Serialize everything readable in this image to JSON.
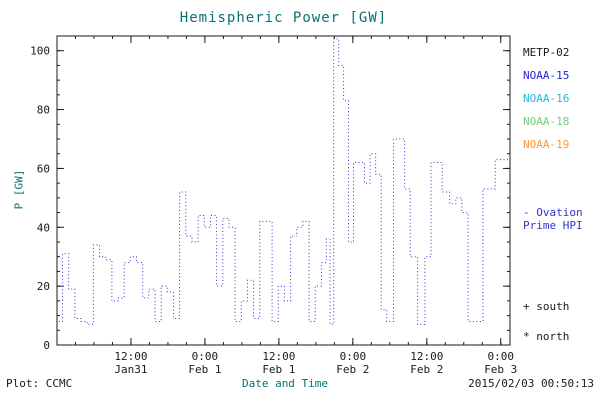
{
  "header": {
    "title": "Hemispheric Power [GW]"
  },
  "footer": {
    "left": "Plot: CCMC",
    "right": "2015/02/03 00:50:13"
  },
  "legend": {
    "satellites": [
      {
        "label": "METP-02",
        "color": "#1a1a1a"
      },
      {
        "label": "NOAA-15",
        "color": "#2222dd"
      },
      {
        "label": "NOAA-16",
        "color": "#22bbdd"
      },
      {
        "label": "NOAA-18",
        "color": "#77cc77"
      },
      {
        "label": "NOAA-19",
        "color": "#ff9933"
      }
    ],
    "model": {
      "line1": "- Ovation",
      "line2": "Prime HPI",
      "color": "#3333cc"
    },
    "marker_south": "+ south",
    "marker_north": "* north"
  },
  "chart_data": {
    "type": "line",
    "step": true,
    "title": "Hemispheric Power [GW]",
    "xlabel": "Date and Time",
    "ylabel": "P [GW]",
    "ylim": [
      0,
      105
    ],
    "y_ticks": [
      0,
      20,
      40,
      60,
      80,
      100
    ],
    "y_minor_step": 5,
    "xlim_hours": [
      0,
      73.5
    ],
    "x_minor_step_hours": 3,
    "x_ticks": [
      {
        "hours": 12,
        "time": "12:00",
        "date": "Jan31"
      },
      {
        "hours": 24,
        "time": "0:00",
        "date": "Feb 1"
      },
      {
        "hours": 36,
        "time": "12:00",
        "date": "Feb 1"
      },
      {
        "hours": 48,
        "time": "0:00",
        "date": "Feb 2"
      },
      {
        "hours": 60,
        "time": "12:00",
        "date": "Feb 2"
      },
      {
        "hours": 72,
        "time": "0:00",
        "date": "Feb 3"
      }
    ],
    "series_name": "Ovation Prime HPI",
    "series_color": "#3333cc",
    "points": [
      [
        0.3,
        8
      ],
      [
        0.9,
        31
      ],
      [
        1.9,
        19
      ],
      [
        2.9,
        9
      ],
      [
        3.9,
        8
      ],
      [
        4.9,
        7
      ],
      [
        5.9,
        34
      ],
      [
        6.9,
        30
      ],
      [
        7.9,
        29
      ],
      [
        8.9,
        15
      ],
      [
        9.9,
        16
      ],
      [
        10.9,
        28
      ],
      [
        11.9,
        30
      ],
      [
        12.9,
        28
      ],
      [
        13.9,
        16
      ],
      [
        14.9,
        19
      ],
      [
        15.9,
        8
      ],
      [
        16.9,
        20
      ],
      [
        17.9,
        18
      ],
      [
        18.9,
        9
      ],
      [
        19.9,
        52
      ],
      [
        20.9,
        37
      ],
      [
        21.9,
        35
      ],
      [
        22.9,
        44
      ],
      [
        23.9,
        40
      ],
      [
        24.9,
        44
      ],
      [
        25.9,
        20
      ],
      [
        26.9,
        43
      ],
      [
        27.9,
        40
      ],
      [
        28.9,
        8
      ],
      [
        29.9,
        15
      ],
      [
        30.9,
        22
      ],
      [
        31.9,
        9
      ],
      [
        32.9,
        42
      ],
      [
        33.9,
        42
      ],
      [
        34.9,
        8
      ],
      [
        35.9,
        20
      ],
      [
        36.9,
        15
      ],
      [
        37.9,
        37
      ],
      [
        38.9,
        40
      ],
      [
        39.9,
        42
      ],
      [
        40.9,
        8
      ],
      [
        41.9,
        20
      ],
      [
        42.9,
        28
      ],
      [
        43.7,
        36
      ],
      [
        44.3,
        7
      ],
      [
        44.9,
        104
      ],
      [
        45.7,
        95
      ],
      [
        46.5,
        83
      ],
      [
        47.3,
        35
      ],
      [
        48.1,
        62
      ],
      [
        49.0,
        62
      ],
      [
        49.9,
        55
      ],
      [
        50.8,
        65
      ],
      [
        51.7,
        58
      ],
      [
        52.6,
        12
      ],
      [
        53.5,
        8
      ],
      [
        54.6,
        70
      ],
      [
        55.5,
        70
      ],
      [
        56.4,
        53
      ],
      [
        57.3,
        30
      ],
      [
        58.5,
        7
      ],
      [
        59.7,
        30
      ],
      [
        60.7,
        62
      ],
      [
        61.6,
        62
      ],
      [
        62.5,
        52
      ],
      [
        63.7,
        48
      ],
      [
        64.7,
        50
      ],
      [
        65.7,
        45
      ],
      [
        66.7,
        8
      ],
      [
        68.1,
        8
      ],
      [
        69.1,
        53
      ],
      [
        70.1,
        53
      ],
      [
        71.1,
        63
      ],
      [
        73.0,
        63
      ]
    ]
  }
}
